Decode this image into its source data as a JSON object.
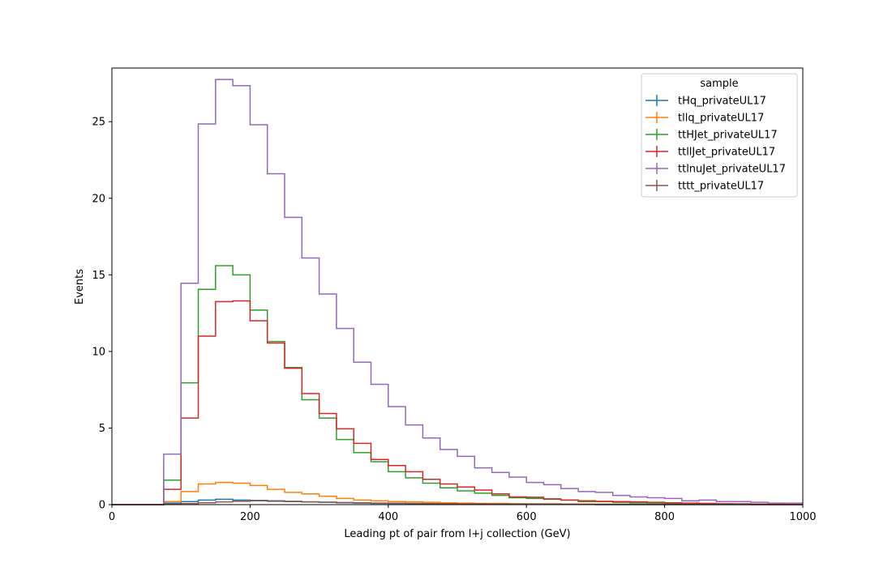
{
  "chart_data": {
    "type": "step",
    "xlabel": "Leading pt of pair from l+j collection (GeV)",
    "ylabel": "Events",
    "xlim": [
      0,
      1000
    ],
    "ylim": [
      0,
      28.5
    ],
    "xticks": [
      0,
      200,
      400,
      600,
      800,
      1000
    ],
    "yticks": [
      0,
      5,
      10,
      15,
      20,
      25
    ],
    "grid": false,
    "legend": {
      "title": "sample",
      "placement": "top-right"
    },
    "bin_edges": [
      0,
      25,
      50,
      75,
      100,
      125,
      150,
      175,
      200,
      225,
      250,
      275,
      300,
      325,
      350,
      375,
      400,
      425,
      450,
      475,
      500,
      525,
      550,
      575,
      600,
      625,
      650,
      675,
      700,
      725,
      750,
      775,
      800,
      825,
      850,
      875,
      900,
      925,
      950,
      975,
      1000
    ],
    "series": [
      {
        "name": "tHq_privateUL17",
        "color": "#1f77b4",
        "values": [
          0,
          0,
          0,
          0.1,
          0.2,
          0.3,
          0.35,
          0.3,
          0.28,
          0.25,
          0.22,
          0.18,
          0.15,
          0.12,
          0.1,
          0.08,
          0.07,
          0.05,
          0.04,
          0.03,
          0.03,
          0.02,
          0.02,
          0.02,
          0.01,
          0.01,
          0.01,
          0.01,
          0,
          0,
          0,
          0,
          0,
          0,
          0,
          0,
          0,
          0,
          0,
          0
        ]
      },
      {
        "name": "tllq_privateUL17",
        "color": "#ff7f0e",
        "values": [
          0,
          0,
          0,
          0.2,
          0.85,
          1.35,
          1.45,
          1.4,
          1.25,
          1.0,
          0.8,
          0.7,
          0.55,
          0.4,
          0.3,
          0.25,
          0.2,
          0.18,
          0.15,
          0.12,
          0.1,
          0.08,
          0.08,
          0.06,
          0.05,
          0.05,
          0.04,
          0.04,
          0.03,
          0.03,
          0.02,
          0.02,
          0.02,
          0.01,
          0.01,
          0.01,
          0.01,
          0.01,
          0,
          0
        ]
      },
      {
        "name": "ttHJet_privateUL17",
        "color": "#2ca02c",
        "values": [
          0,
          0,
          0,
          1.6,
          7.95,
          14.05,
          15.6,
          15.0,
          12.7,
          10.65,
          8.95,
          6.85,
          5.65,
          4.25,
          3.4,
          2.8,
          2.15,
          1.75,
          1.4,
          1.1,
          0.9,
          0.75,
          0.6,
          0.45,
          0.4,
          0.35,
          0.3,
          0.2,
          0.2,
          0.15,
          0.12,
          0.1,
          0.08,
          0.06,
          0.05,
          0.04,
          0.03,
          0.02,
          0.02,
          0.01
        ]
      },
      {
        "name": "ttllJet_privateUL17",
        "color": "#d62728",
        "values": [
          0,
          0,
          0,
          1.0,
          5.65,
          11.0,
          13.25,
          13.3,
          12.0,
          10.55,
          8.9,
          7.25,
          5.95,
          4.95,
          4.0,
          2.95,
          2.55,
          2.15,
          1.65,
          1.35,
          1.15,
          0.95,
          0.7,
          0.5,
          0.48,
          0.38,
          0.3,
          0.25,
          0.22,
          0.2,
          0.18,
          0.15,
          0.12,
          0.1,
          0.08,
          0.06,
          0.05,
          0.04,
          0.03,
          0.02
        ]
      },
      {
        "name": "ttlnuJet_privateUL17",
        "color": "#9467bd",
        "values": [
          0,
          0,
          0,
          3.3,
          14.45,
          24.85,
          27.75,
          27.35,
          24.8,
          21.6,
          18.75,
          16.1,
          13.75,
          11.5,
          9.3,
          7.85,
          6.4,
          5.2,
          4.35,
          3.6,
          3.15,
          2.4,
          2.1,
          1.8,
          1.45,
          1.3,
          1.05,
          0.85,
          0.8,
          0.6,
          0.5,
          0.45,
          0.4,
          0.25,
          0.3,
          0.2,
          0.2,
          0.15,
          0.1,
          0.1
        ]
      },
      {
        "name": "tttt_privateUL17",
        "color": "#8c564b",
        "values": [
          0,
          0,
          0,
          0.03,
          0.07,
          0.12,
          0.18,
          0.22,
          0.25,
          0.22,
          0.2,
          0.18,
          0.16,
          0.14,
          0.12,
          0.1,
          0.09,
          0.08,
          0.07,
          0.06,
          0.05,
          0.05,
          0.04,
          0.04,
          0.03,
          0.03,
          0.03,
          0.02,
          0.02,
          0.02,
          0.02,
          0.01,
          0.01,
          0.01,
          0.01,
          0.01,
          0.01,
          0,
          0,
          0
        ]
      }
    ]
  }
}
